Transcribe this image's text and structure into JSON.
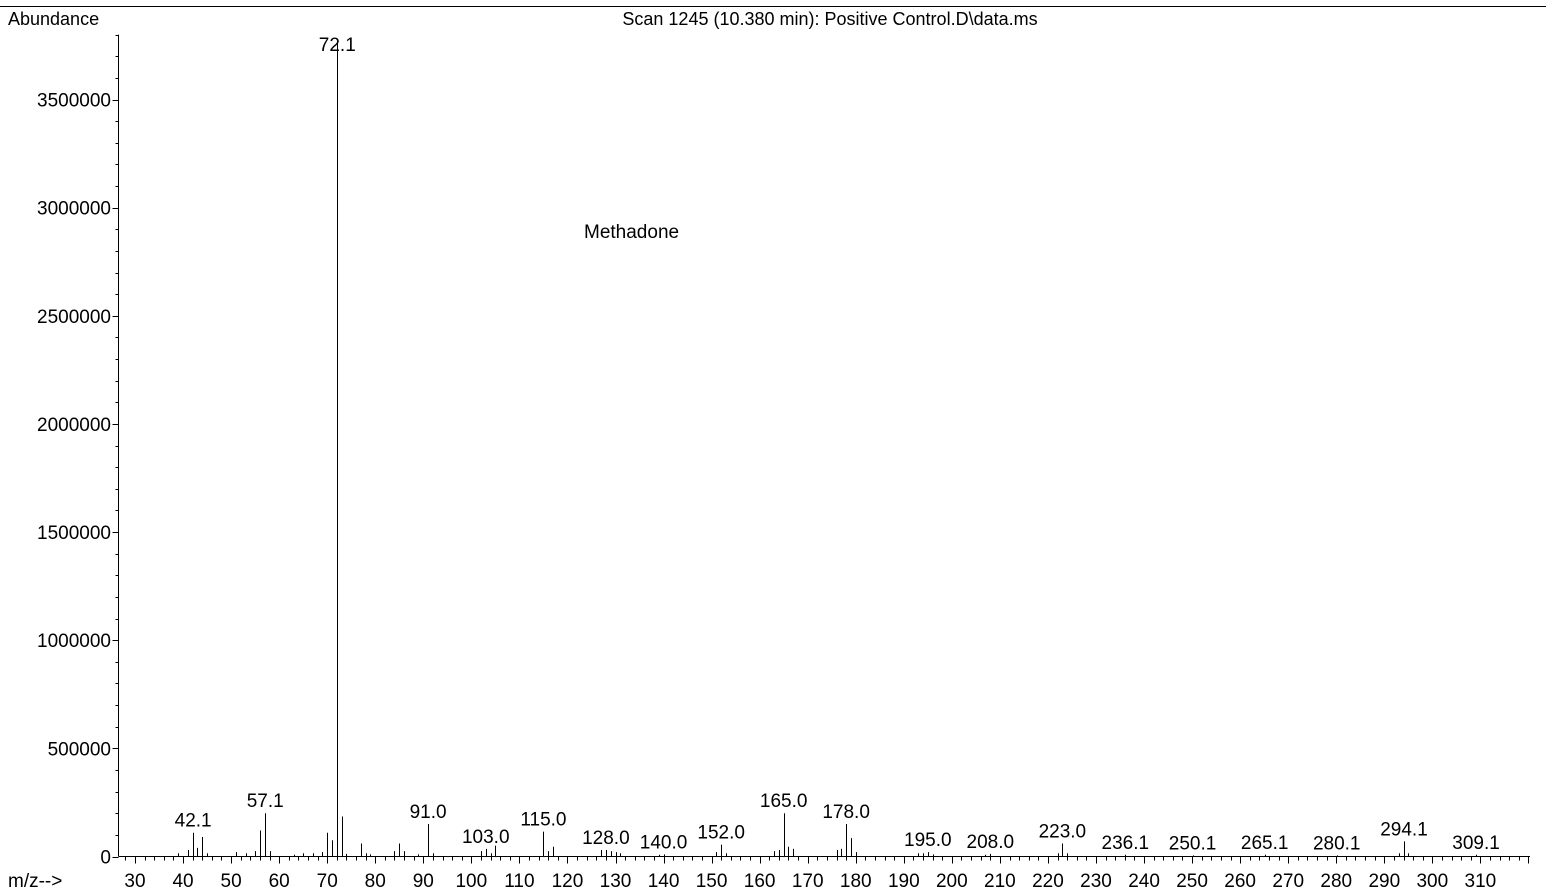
{
  "chart_data": {
    "type": "bar",
    "title": "Scan 1245 (10.380 min): Positive Control.D\\data.ms",
    "ylabel": "Abundance",
    "xlabel": "m/z-->",
    "annotation": "Methadone",
    "xlim": [
      26,
      321.5
    ],
    "ylim": [
      0,
      3800000
    ],
    "x_ticks": [
      30,
      40,
      50,
      60,
      70,
      80,
      90,
      100,
      110,
      120,
      130,
      140,
      150,
      160,
      170,
      180,
      190,
      200,
      210,
      220,
      230,
      240,
      250,
      260,
      270,
      280,
      290,
      300,
      310
    ],
    "y_ticks": [
      0,
      500000,
      1000000,
      1500000,
      2000000,
      2500000,
      3000000,
      3500000
    ],
    "labeled_peaks": [
      {
        "mz": 42.1,
        "label": "42.1",
        "abundance": 110000
      },
      {
        "mz": 57.1,
        "label": "57.1",
        "abundance": 200000
      },
      {
        "mz": 72.1,
        "label": "72.1",
        "abundance": 3780000
      },
      {
        "mz": 91.0,
        "label": "91.0",
        "abundance": 150000
      },
      {
        "mz": 103.0,
        "label": "103.0",
        "abundance": 35000
      },
      {
        "mz": 115.0,
        "label": "115.0",
        "abundance": 115000
      },
      {
        "mz": 128.0,
        "label": "128.0",
        "abundance": 30000
      },
      {
        "mz": 140.0,
        "label": "140.0",
        "abundance": 10000
      },
      {
        "mz": 152.0,
        "label": "152.0",
        "abundance": 55000
      },
      {
        "mz": 165.0,
        "label": "165.0",
        "abundance": 200000
      },
      {
        "mz": 178.0,
        "label": "178.0",
        "abundance": 150000
      },
      {
        "mz": 195.0,
        "label": "195.0",
        "abundance": 20000
      },
      {
        "mz": 208.0,
        "label": "208.0",
        "abundance": 12000
      },
      {
        "mz": 223.0,
        "label": "223.0",
        "abundance": 60000
      },
      {
        "mz": 236.1,
        "label": "236.1",
        "abundance": 8000
      },
      {
        "mz": 250.1,
        "label": "250.1",
        "abundance": 5000
      },
      {
        "mz": 265.1,
        "label": "265.1",
        "abundance": 8000
      },
      {
        "mz": 280.1,
        "label": "280.1",
        "abundance": 5000
      },
      {
        "mz": 294.1,
        "label": "294.1",
        "abundance": 70000
      },
      {
        "mz": 309.1,
        "label": "309.1",
        "abundance": 8000
      }
    ],
    "minor_peaks": [
      {
        "mz": 39,
        "abundance": 15000
      },
      {
        "mz": 41,
        "abundance": 30000
      },
      {
        "mz": 43,
        "abundance": 40000
      },
      {
        "mz": 44,
        "abundance": 90000
      },
      {
        "mz": 45,
        "abundance": 15000
      },
      {
        "mz": 51,
        "abundance": 20000
      },
      {
        "mz": 53,
        "abundance": 15000
      },
      {
        "mz": 55,
        "abundance": 25000
      },
      {
        "mz": 56,
        "abundance": 120000
      },
      {
        "mz": 58,
        "abundance": 25000
      },
      {
        "mz": 63,
        "abundance": 8000
      },
      {
        "mz": 65,
        "abundance": 15000
      },
      {
        "mz": 67,
        "abundance": 15000
      },
      {
        "mz": 69,
        "abundance": 20000
      },
      {
        "mz": 70,
        "abundance": 110000
      },
      {
        "mz": 71,
        "abundance": 75000
      },
      {
        "mz": 73,
        "abundance": 185000
      },
      {
        "mz": 74,
        "abundance": 12000
      },
      {
        "mz": 77,
        "abundance": 60000
      },
      {
        "mz": 78,
        "abundance": 15000
      },
      {
        "mz": 79,
        "abundance": 10000
      },
      {
        "mz": 84,
        "abundance": 25000
      },
      {
        "mz": 85,
        "abundance": 60000
      },
      {
        "mz": 86,
        "abundance": 25000
      },
      {
        "mz": 89,
        "abundance": 10000
      },
      {
        "mz": 92,
        "abundance": 15000
      },
      {
        "mz": 102,
        "abundance": 25000
      },
      {
        "mz": 104,
        "abundance": 15000
      },
      {
        "mz": 105,
        "abundance": 50000
      },
      {
        "mz": 116,
        "abundance": 25000
      },
      {
        "mz": 117,
        "abundance": 45000
      },
      {
        "mz": 127,
        "abundance": 30000
      },
      {
        "mz": 129,
        "abundance": 25000
      },
      {
        "mz": 130,
        "abundance": 20000
      },
      {
        "mz": 131,
        "abundance": 15000
      },
      {
        "mz": 139,
        "abundance": 8000
      },
      {
        "mz": 151,
        "abundance": 20000
      },
      {
        "mz": 153,
        "abundance": 15000
      },
      {
        "mz": 163,
        "abundance": 25000
      },
      {
        "mz": 164,
        "abundance": 30000
      },
      {
        "mz": 166,
        "abundance": 45000
      },
      {
        "mz": 167,
        "abundance": 35000
      },
      {
        "mz": 176,
        "abundance": 30000
      },
      {
        "mz": 177,
        "abundance": 35000
      },
      {
        "mz": 179,
        "abundance": 85000
      },
      {
        "mz": 180,
        "abundance": 20000
      },
      {
        "mz": 193,
        "abundance": 15000
      },
      {
        "mz": 194,
        "abundance": 15000
      },
      {
        "mz": 196,
        "abundance": 10000
      },
      {
        "mz": 207,
        "abundance": 8000
      },
      {
        "mz": 222,
        "abundance": 15000
      },
      {
        "mz": 224,
        "abundance": 15000
      },
      {
        "mz": 293,
        "abundance": 15000
      },
      {
        "mz": 295,
        "abundance": 15000
      }
    ]
  }
}
